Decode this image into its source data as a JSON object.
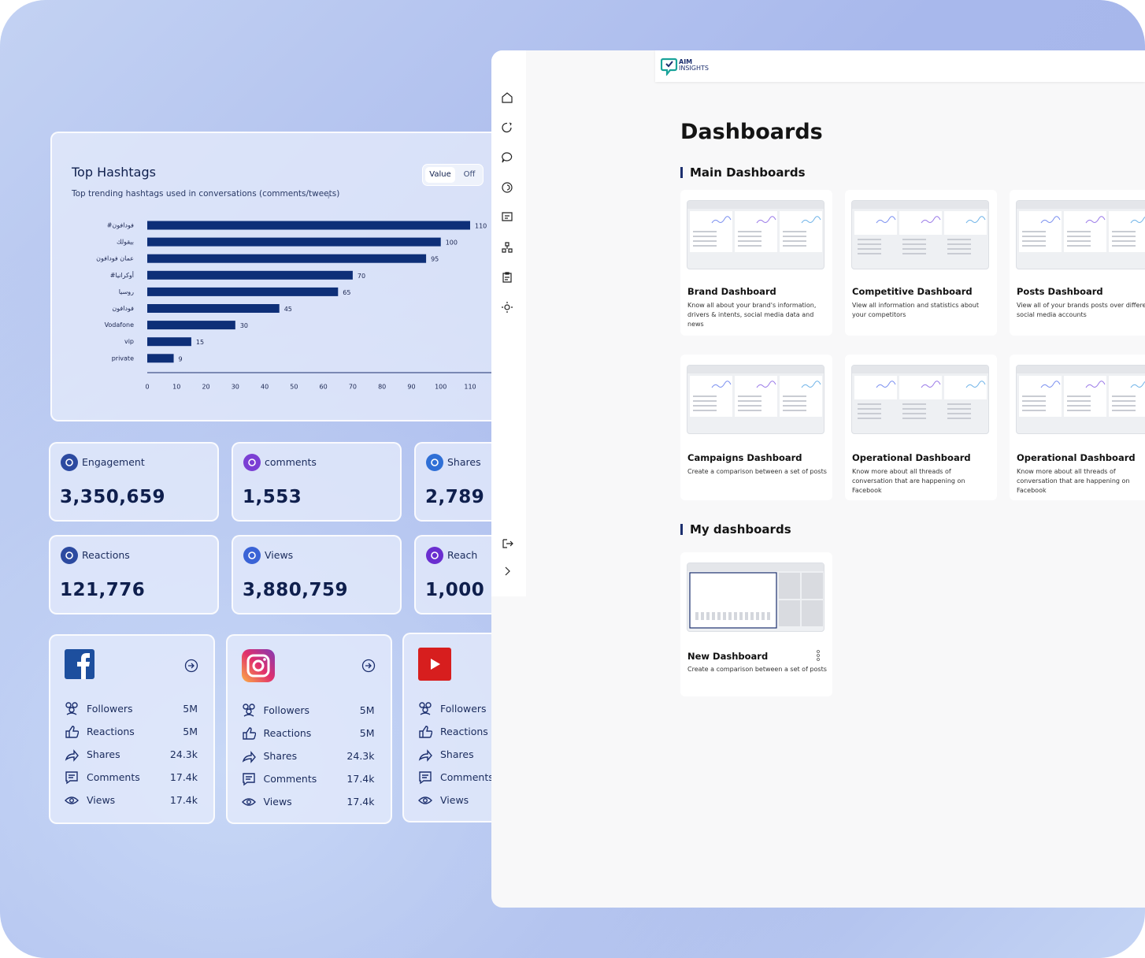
{
  "chart_data": {
    "type": "bar",
    "orientation": "horizontal",
    "title": "Top Hashtags",
    "subtitle": "Top trending hashtags used in conversations (comments/tweets)",
    "toggle": [
      "Value",
      "Off"
    ],
    "categories": [
      "#فودافون",
      "بيقولك",
      "عمان فودافون",
      "#أوكرانيا",
      "روسيا",
      "فودافون",
      "Vodafone",
      "vip",
      "private"
    ],
    "values": [
      110,
      100,
      95,
      70,
      65,
      45,
      30,
      15,
      9
    ],
    "color": "#0e2f78",
    "xlim": [
      0,
      110
    ],
    "xticks": [
      0,
      10,
      20,
      30,
      40,
      50,
      60,
      70,
      80,
      90,
      100,
      110
    ]
  },
  "stats": [
    {
      "label": "Engagement",
      "value": "3,350,659"
    },
    {
      "label": "comments",
      "value": "1,553"
    },
    {
      "label": "Shares",
      "value": "2,789"
    },
    {
      "label": "Reactions",
      "value": "121,776"
    },
    {
      "label": "Views",
      "value": "3,880,759"
    },
    {
      "label": "Reach",
      "value": "1,000"
    }
  ],
  "social": [
    {
      "rows": [
        {
          "label": "Followers",
          "value": "5M"
        },
        {
          "label": "Reactions",
          "value": "5M"
        },
        {
          "label": "Shares",
          "value": "24.3k"
        },
        {
          "label": "Comments",
          "value": "17.4k"
        },
        {
          "label": "Views",
          "value": "17.4k"
        }
      ]
    },
    {
      "rows": [
        {
          "label": "Followers",
          "value": "5M"
        },
        {
          "label": "Reactions",
          "value": "5M"
        },
        {
          "label": "Shares",
          "value": "24.3k"
        },
        {
          "label": "Comments",
          "value": "17.4k"
        },
        {
          "label": "Views",
          "value": "17.4k"
        }
      ]
    },
    {
      "rows": [
        {
          "label": "Followers"
        },
        {
          "label": "Reactions"
        },
        {
          "label": "Shares"
        },
        {
          "label": "Comments"
        },
        {
          "label": "Views"
        }
      ]
    }
  ],
  "app": {
    "logo": [
      "AIM",
      "INSIGHTS"
    ],
    "title": "Dashboards",
    "main_heading": "Main Dashboards",
    "main": [
      {
        "title": "Brand Dashboard",
        "description": "Know all about your brand's information, drivers & intents, social media data and news"
      },
      {
        "title": "Competitive Dashboard",
        "description": "View all information and statistics about your competitors"
      },
      {
        "title": "Posts Dashboard",
        "description": "View all of your brands posts over different social media accounts"
      },
      {
        "title": "Campaigns Dashboard",
        "description": "Create a comparison between a set of posts"
      },
      {
        "title": "Operational Dashboard",
        "description": "Know more about all threads of conversation that are happening on Facebook"
      },
      {
        "title": "Operational Dashboard",
        "description": "Know more about all threads of conversation that are happening on Facebook"
      }
    ],
    "my_heading": "My dashboards",
    "my": [
      {
        "title": "New Dashboard",
        "description": "Create a comparison between a set of posts"
      }
    ]
  }
}
